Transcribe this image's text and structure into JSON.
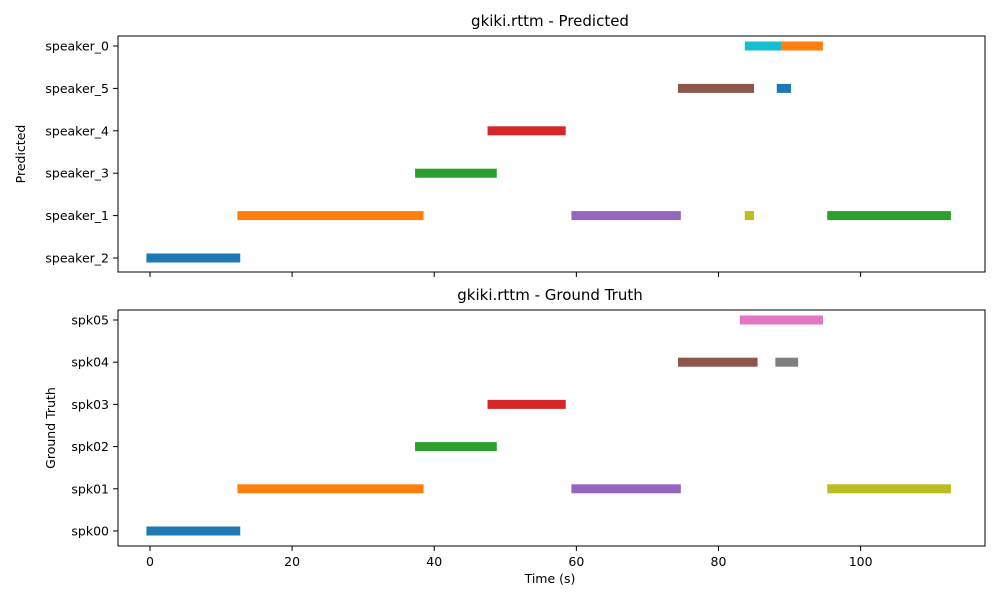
{
  "chart_data": [
    {
      "type": "broken-barh",
      "title": "gkiki.rttm - Predicted",
      "ylabel": "Predicted",
      "xlabel": "",
      "xlim": [
        -4.5,
        117.5
      ],
      "xticks": [
        0,
        20,
        40,
        60,
        80,
        100
      ],
      "show_xtick_labels": false,
      "grid": false,
      "speakers": [
        "speaker_2",
        "speaker_1",
        "speaker_3",
        "speaker_4",
        "speaker_5",
        "speaker_0"
      ],
      "segments": [
        {
          "speaker": "speaker_2",
          "start": -0.5,
          "end": 12.7,
          "color": "#1f77b4"
        },
        {
          "speaker": "speaker_1",
          "start": 12.3,
          "end": 38.5,
          "color": "#ff7f0e"
        },
        {
          "speaker": "speaker_3",
          "start": 37.3,
          "end": 48.8,
          "color": "#2ca02c"
        },
        {
          "speaker": "speaker_4",
          "start": 47.5,
          "end": 58.5,
          "color": "#d62728"
        },
        {
          "speaker": "speaker_1",
          "start": 59.3,
          "end": 74.7,
          "color": "#9467bd"
        },
        {
          "speaker": "speaker_5",
          "start": 74.3,
          "end": 85.0,
          "color": "#8c564b"
        },
        {
          "speaker": "speaker_0",
          "start": 83.7,
          "end": 89.5,
          "color": "#17becf"
        },
        {
          "speaker": "speaker_1",
          "start": 83.7,
          "end": 85.0,
          "color": "#bcbd22"
        },
        {
          "speaker": "speaker_5",
          "start": 88.2,
          "end": 90.2,
          "color": "#1f77b4"
        },
        {
          "speaker": "speaker_0",
          "start": 88.8,
          "end": 94.7,
          "color": "#ff7f0e"
        },
        {
          "speaker": "speaker_1",
          "start": 95.3,
          "end": 112.7,
          "color": "#2ca02c"
        }
      ]
    },
    {
      "type": "broken-barh",
      "title": "gkiki.rttm - Ground Truth",
      "ylabel": "Ground Truth",
      "xlabel": "Time (s)",
      "xlim": [
        -4.5,
        117.5
      ],
      "xticks": [
        0,
        20,
        40,
        60,
        80,
        100
      ],
      "show_xtick_labels": true,
      "grid": false,
      "speakers": [
        "spk00",
        "spk01",
        "spk02",
        "spk03",
        "spk04",
        "spk05"
      ],
      "segments": [
        {
          "speaker": "spk00",
          "start": -0.5,
          "end": 12.7,
          "color": "#1f77b4"
        },
        {
          "speaker": "spk01",
          "start": 12.3,
          "end": 38.5,
          "color": "#ff7f0e"
        },
        {
          "speaker": "spk02",
          "start": 37.3,
          "end": 48.8,
          "color": "#2ca02c"
        },
        {
          "speaker": "spk03",
          "start": 47.5,
          "end": 58.5,
          "color": "#d62728"
        },
        {
          "speaker": "spk01",
          "start": 59.3,
          "end": 74.7,
          "color": "#9467bd"
        },
        {
          "speaker": "spk04",
          "start": 74.3,
          "end": 85.5,
          "color": "#8c564b"
        },
        {
          "speaker": "spk05",
          "start": 83.0,
          "end": 94.7,
          "color": "#e377c2"
        },
        {
          "speaker": "spk04",
          "start": 88.0,
          "end": 91.2,
          "color": "#7f7f7f"
        },
        {
          "speaker": "spk01",
          "start": 95.3,
          "end": 112.7,
          "color": "#bcbd22"
        }
      ]
    }
  ]
}
